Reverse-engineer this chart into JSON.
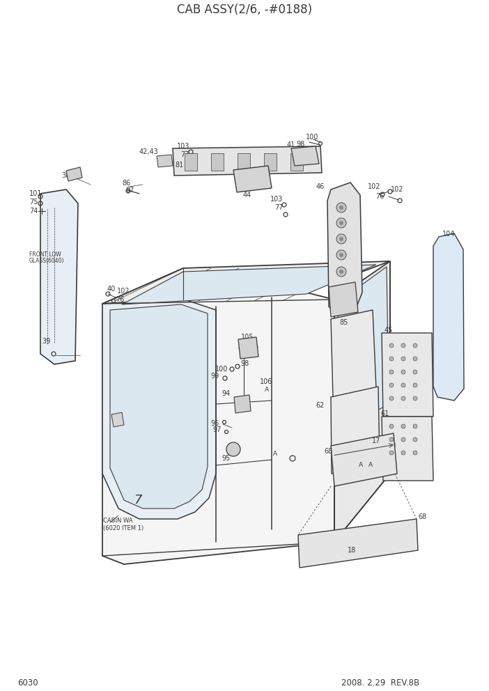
{
  "title": "CAB ASSY(2/6, -#0188)",
  "page_num": "6030",
  "rev": "2008. 2.29  REV.8B",
  "bg_color": "#ffffff",
  "line_color": "#3a3a3a",
  "title_fontsize": 12,
  "label_fontsize": 7,
  "small_fontsize": 6
}
